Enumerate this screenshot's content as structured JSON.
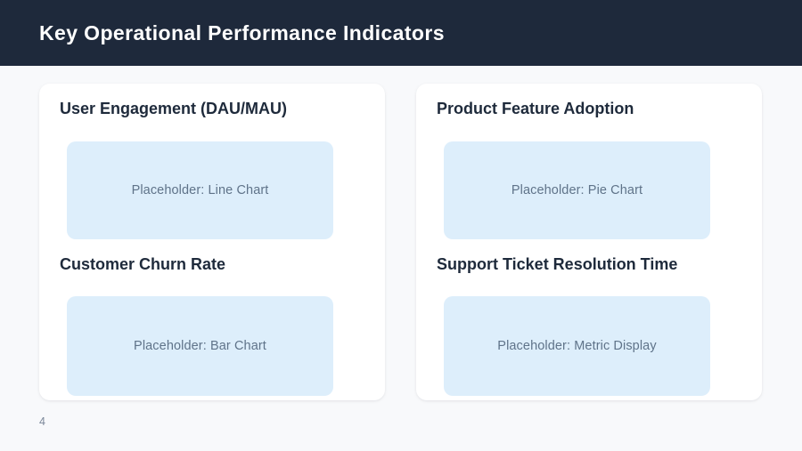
{
  "header": {
    "title": "Key Operational Performance Indicators"
  },
  "cards": [
    {
      "sections": [
        {
          "title": "User Engagement (DAU/MAU)",
          "placeholder": "Placeholder: Line Chart"
        },
        {
          "title": "Customer Churn Rate",
          "placeholder": "Placeholder: Bar Chart"
        }
      ]
    },
    {
      "sections": [
        {
          "title": "Product Feature Adoption",
          "placeholder": "Placeholder: Pie Chart"
        },
        {
          "title": "Support Ticket Resolution Time",
          "placeholder": "Placeholder: Metric Display"
        }
      ]
    }
  ],
  "page_number": "4",
  "colors": {
    "header_bg": "#1e293b",
    "page_bg": "#f8f9fb",
    "card_bg": "#ffffff",
    "placeholder_bg": "#ddeefb",
    "placeholder_text": "#5f7389",
    "section_title_text": "#1e2a3b",
    "header_title_text": "#ffffff",
    "page_number_text": "#7b8799"
  }
}
